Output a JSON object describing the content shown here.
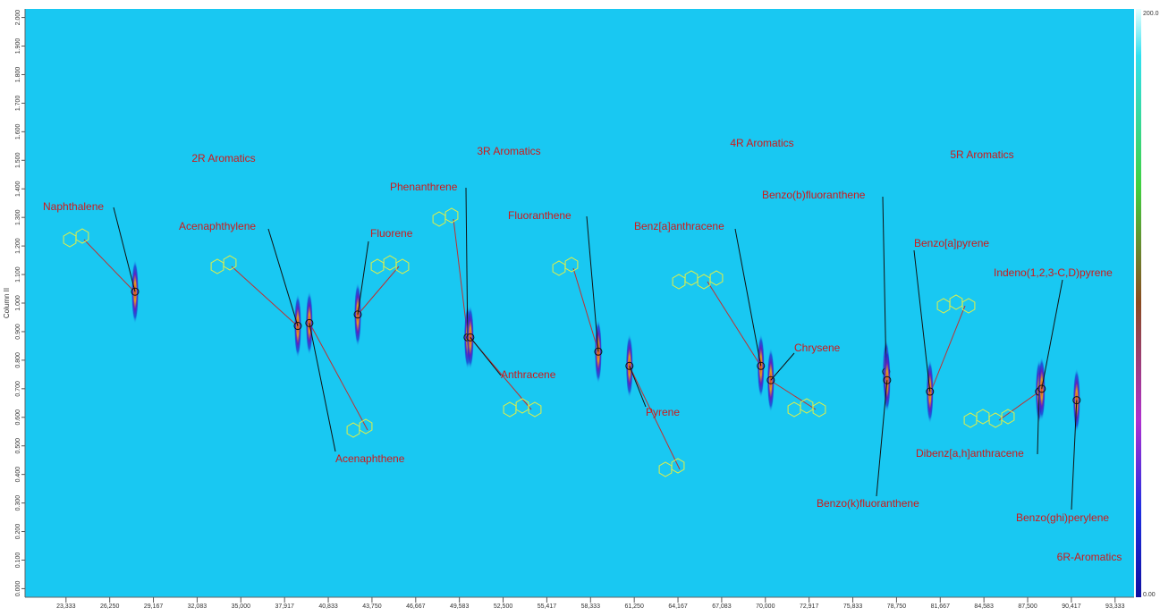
{
  "chart_data": {
    "type": "scatter",
    "y_label": "Column II",
    "xlim": [
      20.6,
      94.6
    ],
    "ylim": [
      -0.03,
      2.03
    ],
    "xticks": [
      {
        "value": 23.333,
        "label": "23,333"
      },
      {
        "value": 26.25,
        "label": "26,250"
      },
      {
        "value": 29.167,
        "label": "29,167"
      },
      {
        "value": 32.083,
        "label": "32,083"
      },
      {
        "value": 35.0,
        "label": "35,000"
      },
      {
        "value": 37.917,
        "label": "37,917"
      },
      {
        "value": 40.833,
        "label": "40,833"
      },
      {
        "value": 43.75,
        "label": "43,750"
      },
      {
        "value": 46.667,
        "label": "46,667"
      },
      {
        "value": 49.583,
        "label": "49,583"
      },
      {
        "value": 52.5,
        "label": "52,500"
      },
      {
        "value": 55.417,
        "label": "55,417"
      },
      {
        "value": 58.333,
        "label": "58,333"
      },
      {
        "value": 61.25,
        "label": "61,250"
      },
      {
        "value": 64.167,
        "label": "64,167"
      },
      {
        "value": 67.083,
        "label": "67,083"
      },
      {
        "value": 70.0,
        "label": "70,000"
      },
      {
        "value": 72.917,
        "label": "72,917"
      },
      {
        "value": 75.833,
        "label": "75,833"
      },
      {
        "value": 78.75,
        "label": "78,750"
      },
      {
        "value": 81.667,
        "label": "81,667"
      },
      {
        "value": 84.583,
        "label": "84,583"
      },
      {
        "value": 87.5,
        "label": "87,500"
      },
      {
        "value": 90.417,
        "label": "90,417"
      },
      {
        "value": 93.333,
        "label": "93,333"
      }
    ],
    "yticks": [
      {
        "value": 0,
        "label": "0.000"
      },
      {
        "value": 0.1,
        "label": "0.100"
      },
      {
        "value": 0.2,
        "label": "0.200"
      },
      {
        "value": 0.3,
        "label": "0.300"
      },
      {
        "value": 0.4,
        "label": "0.400"
      },
      {
        "value": 0.5,
        "label": "0.500"
      },
      {
        "value": 0.6,
        "label": "0.600"
      },
      {
        "value": 0.7,
        "label": "0.700"
      },
      {
        "value": 0.8,
        "label": "0.800"
      },
      {
        "value": 0.9,
        "label": "0.900"
      },
      {
        "value": 1,
        "label": "1.000"
      },
      {
        "value": 1.1,
        "label": "1.100"
      },
      {
        "value": 1.2,
        "label": "1.200"
      },
      {
        "value": 1.3,
        "label": "1.300"
      },
      {
        "value": 1.4,
        "label": "1.400"
      },
      {
        "value": 1.5,
        "label": "1.500"
      },
      {
        "value": 1.6,
        "label": "1.600"
      },
      {
        "value": 1.7,
        "label": "1.700"
      },
      {
        "value": 1.8,
        "label": "1.800"
      },
      {
        "value": 1.9,
        "label": "1.900"
      },
      {
        "value": 2,
        "label": "2.000"
      }
    ],
    "colorbar_ticks": [
      {
        "value": 200,
        "label": "200.0"
      },
      {
        "value": 0,
        "label": "0.00"
      }
    ],
    "groups": [
      "2R Aromatics",
      "3R Aromatics",
      "4R Aromatics",
      "5R Aromatics",
      "6R-Aromatics"
    ],
    "peaks": [
      {
        "label": "Naphthalene",
        "x": 27.94,
        "y": 1.04
      },
      {
        "label": "Acenaphthylene",
        "x": 38.8,
        "y": 0.92
      },
      {
        "label": "Acenaphthene",
        "x": 39.57,
        "y": 0.93
      },
      {
        "label": "Fluorene",
        "x": 42.8,
        "y": 0.96
      },
      {
        "label": "Phenanthrene",
        "x": 50.13,
        "y": 0.88
      },
      {
        "label": "Anthracene",
        "x": 50.31,
        "y": 0.88
      },
      {
        "label": "Fluoranthene",
        "x": 58.85,
        "y": 0.83
      },
      {
        "label": "Pyrene",
        "x": 60.93,
        "y": 0.78
      },
      {
        "label": "Benz[a]anthracene",
        "x": 69.7,
        "y": 0.78
      },
      {
        "label": "Chrysene",
        "x": 70.36,
        "y": 0.73
      },
      {
        "label": "Benzo(b)fluoranthene",
        "x": 78.06,
        "y": 0.76
      },
      {
        "label": "Benzo(k)fluoranthene",
        "x": 78.12,
        "y": 0.73
      },
      {
        "label": "Benzo[a]pyrene",
        "x": 80.98,
        "y": 0.69
      },
      {
        "label": "Dibenz[a,h]anthracene",
        "x": 88.26,
        "y": 0.69
      },
      {
        "label": "Indeno(1,2,3-C,D)pyrene",
        "x": 88.44,
        "y": 0.7
      },
      {
        "label": "Benzo(ghi)perylene",
        "x": 90.77,
        "y": 0.66
      }
    ]
  }
}
